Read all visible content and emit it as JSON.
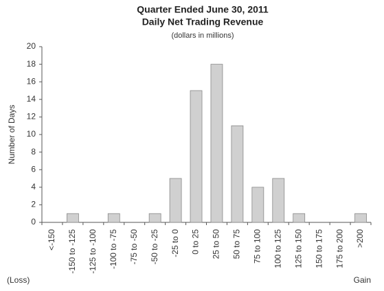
{
  "chart_data": {
    "type": "bar",
    "title": [
      "Quarter Ended June 30, 2011",
      "Daily Net Trading Revenue"
    ],
    "subtitle": "(dollars in millions)",
    "y_label": "Number of Days",
    "annotations": [
      "(Loss)",
      "Gain"
    ],
    "categories": [
      "<-150",
      "-150 to -125",
      "-125 to -100",
      "-100 to -75",
      "-75 to -50",
      "-50 to -25",
      "-25 to 0",
      "0 to 25",
      "25 to 50",
      "50 to 75",
      "75 to 100",
      "100 to 125",
      "125 to 150",
      "150 to 175",
      "175 to 200",
      ">200"
    ],
    "values": [
      0,
      1,
      0,
      1,
      0,
      1,
      5,
      15,
      18,
      11,
      4,
      5,
      1,
      0,
      0,
      1
    ],
    "color": "#d0d0d0",
    "ylim": [
      0,
      20
    ],
    "yticks": [
      0,
      2,
      4,
      6,
      8,
      10,
      12,
      14,
      16,
      18,
      20
    ],
    "grid": false
  }
}
